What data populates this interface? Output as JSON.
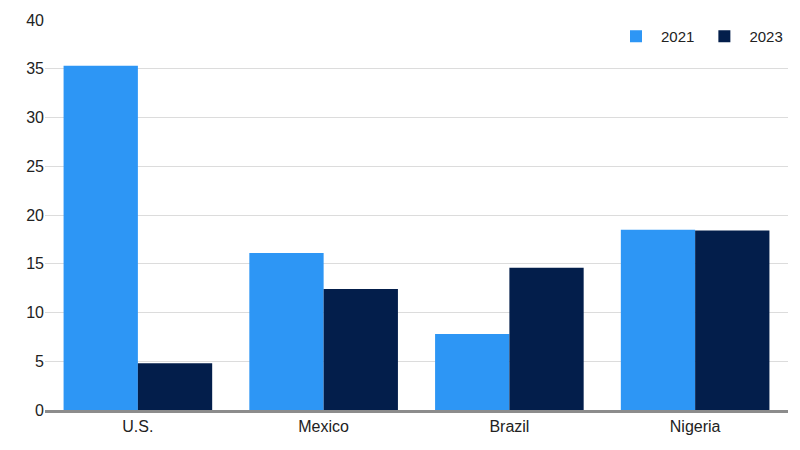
{
  "chart_data": {
    "type": "bar",
    "categories": [
      "U.S.",
      "Mexico",
      "Brazil",
      "Nigeria"
    ],
    "series": [
      {
        "name": "2021",
        "color": "#2d96f5",
        "values": [
          35.3,
          16.1,
          7.8,
          18.5
        ]
      },
      {
        "name": "2023",
        "color": "#031e4b",
        "values": [
          4.8,
          12.4,
          14.6,
          18.4
        ]
      }
    ],
    "ylim": [
      0,
      40
    ],
    "yticks": [
      0,
      5,
      10,
      15,
      20,
      25,
      30,
      35,
      40
    ],
    "grid": true,
    "legend": "top right"
  }
}
